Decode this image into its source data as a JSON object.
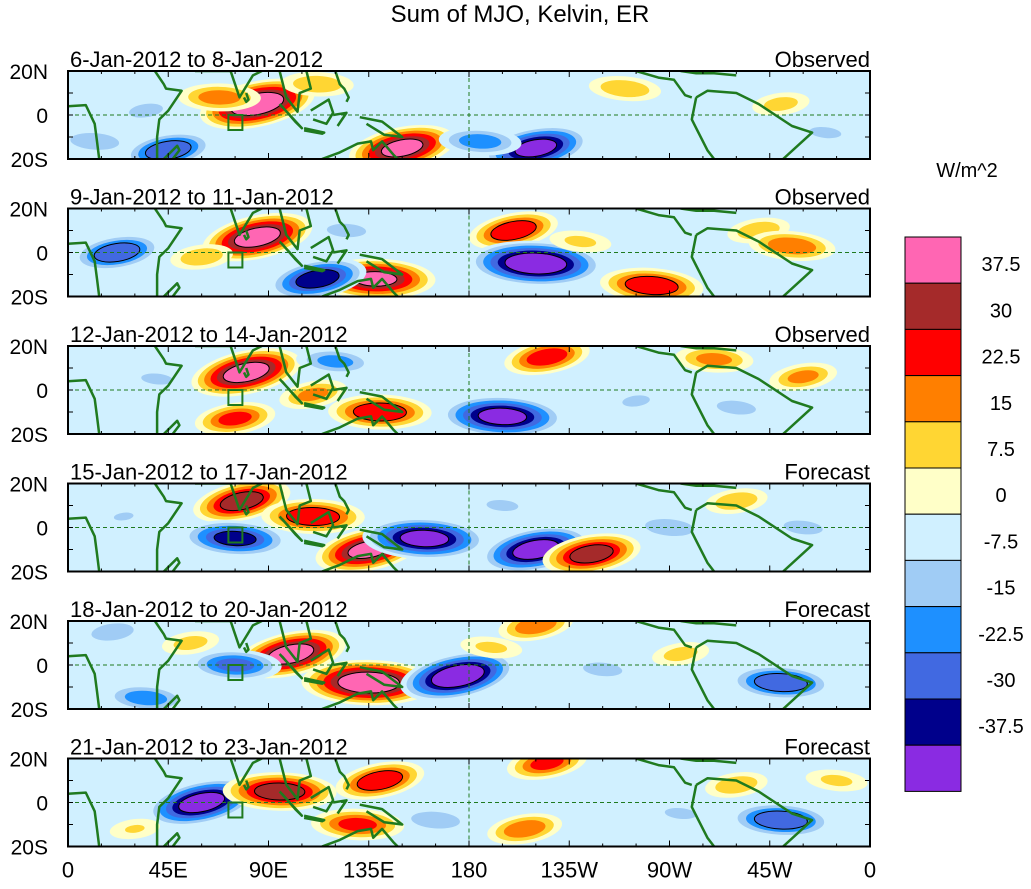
{
  "title": "Sum of MJO, Kelvin, ER",
  "colorbar_unit": "W/m^2",
  "chart_data": {
    "type": "heatmap",
    "variable": "OLR anomaly",
    "title": "Sum of MJO, Kelvin, ER",
    "units": "W/m^2",
    "x_tick_labels": [
      "0",
      "45E",
      "90E",
      "135E",
      "180",
      "135W",
      "90W",
      "45W",
      "0"
    ],
    "y_tick_labels": [
      "20N",
      "0",
      "20S"
    ],
    "lon_range": [
      0,
      360
    ],
    "lat_range": [
      -20,
      20
    ],
    "colorbar": {
      "levels": [
        "37.5",
        "30",
        "22.5",
        "15",
        "7.5",
        "0",
        "-7.5",
        "-15",
        "-22.5",
        "-30",
        "-37.5"
      ],
      "colors": [
        "#ff66b3",
        "#a52a2a",
        "#ff0000",
        "#ff7f00",
        "#ffd633",
        "#ffffc8",
        "#d0f0ff",
        "#a0ccf5",
        "#1e90ff",
        "#4169e1",
        "#00008b",
        "#8a2be2"
      ]
    },
    "panels": [
      {
        "date_range": "6-Jan-2012 to 8-Jan-2012",
        "kind": "Observed",
        "features": [
          {
            "lon": 85,
            "lat": 5,
            "value": 45
          },
          {
            "lon": 68,
            "lat": 8,
            "value": 20
          },
          {
            "lon": 150,
            "lat": -15,
            "value": 40
          },
          {
            "lon": 112,
            "lat": 14,
            "value": 15
          },
          {
            "lon": 210,
            "lat": -15,
            "value": -40
          },
          {
            "lon": 185,
            "lat": -12,
            "value": -20
          },
          {
            "lon": 45,
            "lat": -16,
            "value": -30
          },
          {
            "lon": 12,
            "lat": -12,
            "value": -15
          },
          {
            "lon": 35,
            "lat": 2,
            "value": -12
          },
          {
            "lon": 250,
            "lat": 12,
            "value": 15
          },
          {
            "lon": 320,
            "lat": 5,
            "value": 12
          },
          {
            "lon": 340,
            "lat": -8,
            "value": -10
          }
        ]
      },
      {
        "date_range": "9-Jan-2012 to 11-Jan-2012",
        "kind": "Observed",
        "features": [
          {
            "lon": 85,
            "lat": 7,
            "value": 42
          },
          {
            "lon": 138,
            "lat": -12,
            "value": 38
          },
          {
            "lon": 200,
            "lat": 10,
            "value": 30
          },
          {
            "lon": 210,
            "lat": -5,
            "value": -45
          },
          {
            "lon": 112,
            "lat": -12,
            "value": -35
          },
          {
            "lon": 125,
            "lat": 10,
            "value": -12
          },
          {
            "lon": 22,
            "lat": 0,
            "value": -30
          },
          {
            "lon": 262,
            "lat": -15,
            "value": 30
          },
          {
            "lon": 310,
            "lat": 10,
            "value": 15
          },
          {
            "lon": 325,
            "lat": 3,
            "value": 22
          },
          {
            "lon": 60,
            "lat": -2,
            "value": 15
          },
          {
            "lon": 230,
            "lat": 5,
            "value": 10
          }
        ]
      },
      {
        "date_range": "12-Jan-2012 to 14-Jan-2012",
        "kind": "Observed",
        "features": [
          {
            "lon": 80,
            "lat": 8,
            "value": 42
          },
          {
            "lon": 140,
            "lat": -10,
            "value": 30
          },
          {
            "lon": 110,
            "lat": -2,
            "value": 18
          },
          {
            "lon": 195,
            "lat": -12,
            "value": -40
          },
          {
            "lon": 215,
            "lat": 15,
            "value": 28
          },
          {
            "lon": 290,
            "lat": 14,
            "value": 18
          },
          {
            "lon": 330,
            "lat": 6,
            "value": 18
          },
          {
            "lon": 120,
            "lat": 13,
            "value": -18
          },
          {
            "lon": 75,
            "lat": -13,
            "value": 25
          },
          {
            "lon": 40,
            "lat": 5,
            "value": -10
          },
          {
            "lon": 255,
            "lat": -5,
            "value": -10
          },
          {
            "lon": 300,
            "lat": -8,
            "value": -12
          }
        ]
      },
      {
        "date_range": "15-Jan-2012 to 17-Jan-2012",
        "kind": "Forecast",
        "features": [
          {
            "lon": 78,
            "lat": 12,
            "value": 35
          },
          {
            "lon": 110,
            "lat": 5,
            "value": 30
          },
          {
            "lon": 135,
            "lat": -10,
            "value": 40
          },
          {
            "lon": 160,
            "lat": -5,
            "value": -40
          },
          {
            "lon": 210,
            "lat": -10,
            "value": -42
          },
          {
            "lon": 75,
            "lat": -5,
            "value": -32
          },
          {
            "lon": 235,
            "lat": -12,
            "value": 35
          },
          {
            "lon": 195,
            "lat": 10,
            "value": -10
          },
          {
            "lon": 300,
            "lat": 12,
            "value": 15
          },
          {
            "lon": 270,
            "lat": 0,
            "value": -15
          },
          {
            "lon": 25,
            "lat": 5,
            "value": -8
          },
          {
            "lon": 330,
            "lat": 0,
            "value": -12
          }
        ]
      },
      {
        "date_range": "18-Jan-2012 to 20-Jan-2012",
        "kind": "Forecast",
        "features": [
          {
            "lon": 100,
            "lat": 5,
            "value": 42
          },
          {
            "lon": 135,
            "lat": -8,
            "value": 45
          },
          {
            "lon": 175,
            "lat": -5,
            "value": -45
          },
          {
            "lon": 75,
            "lat": 0,
            "value": -25
          },
          {
            "lon": 210,
            "lat": 18,
            "value": 22
          },
          {
            "lon": 320,
            "lat": -8,
            "value": -30
          },
          {
            "lon": 275,
            "lat": 5,
            "value": 12
          },
          {
            "lon": 35,
            "lat": -15,
            "value": -20
          },
          {
            "lon": 55,
            "lat": 10,
            "value": 12
          },
          {
            "lon": 240,
            "lat": -2,
            "value": -12
          },
          {
            "lon": 20,
            "lat": 15,
            "value": -15
          },
          {
            "lon": 190,
            "lat": 8,
            "value": 10
          }
        ]
      },
      {
        "date_range": "21-Jan-2012 to 23-Jan-2012",
        "kind": "Forecast",
        "features": [
          {
            "lon": 60,
            "lat": 0,
            "value": -42
          },
          {
            "lon": 95,
            "lat": 5,
            "value": 35
          },
          {
            "lon": 140,
            "lat": 10,
            "value": 30
          },
          {
            "lon": 130,
            "lat": -10,
            "value": 25
          },
          {
            "lon": 215,
            "lat": 18,
            "value": 25
          },
          {
            "lon": 320,
            "lat": -8,
            "value": -30
          },
          {
            "lon": 205,
            "lat": -12,
            "value": 22
          },
          {
            "lon": 165,
            "lat": -8,
            "value": -15
          },
          {
            "lon": 300,
            "lat": 8,
            "value": 15
          },
          {
            "lon": 275,
            "lat": -5,
            "value": -10
          },
          {
            "lon": 30,
            "lat": -12,
            "value": 8
          },
          {
            "lon": 345,
            "lat": 10,
            "value": 10
          }
        ]
      }
    ]
  }
}
